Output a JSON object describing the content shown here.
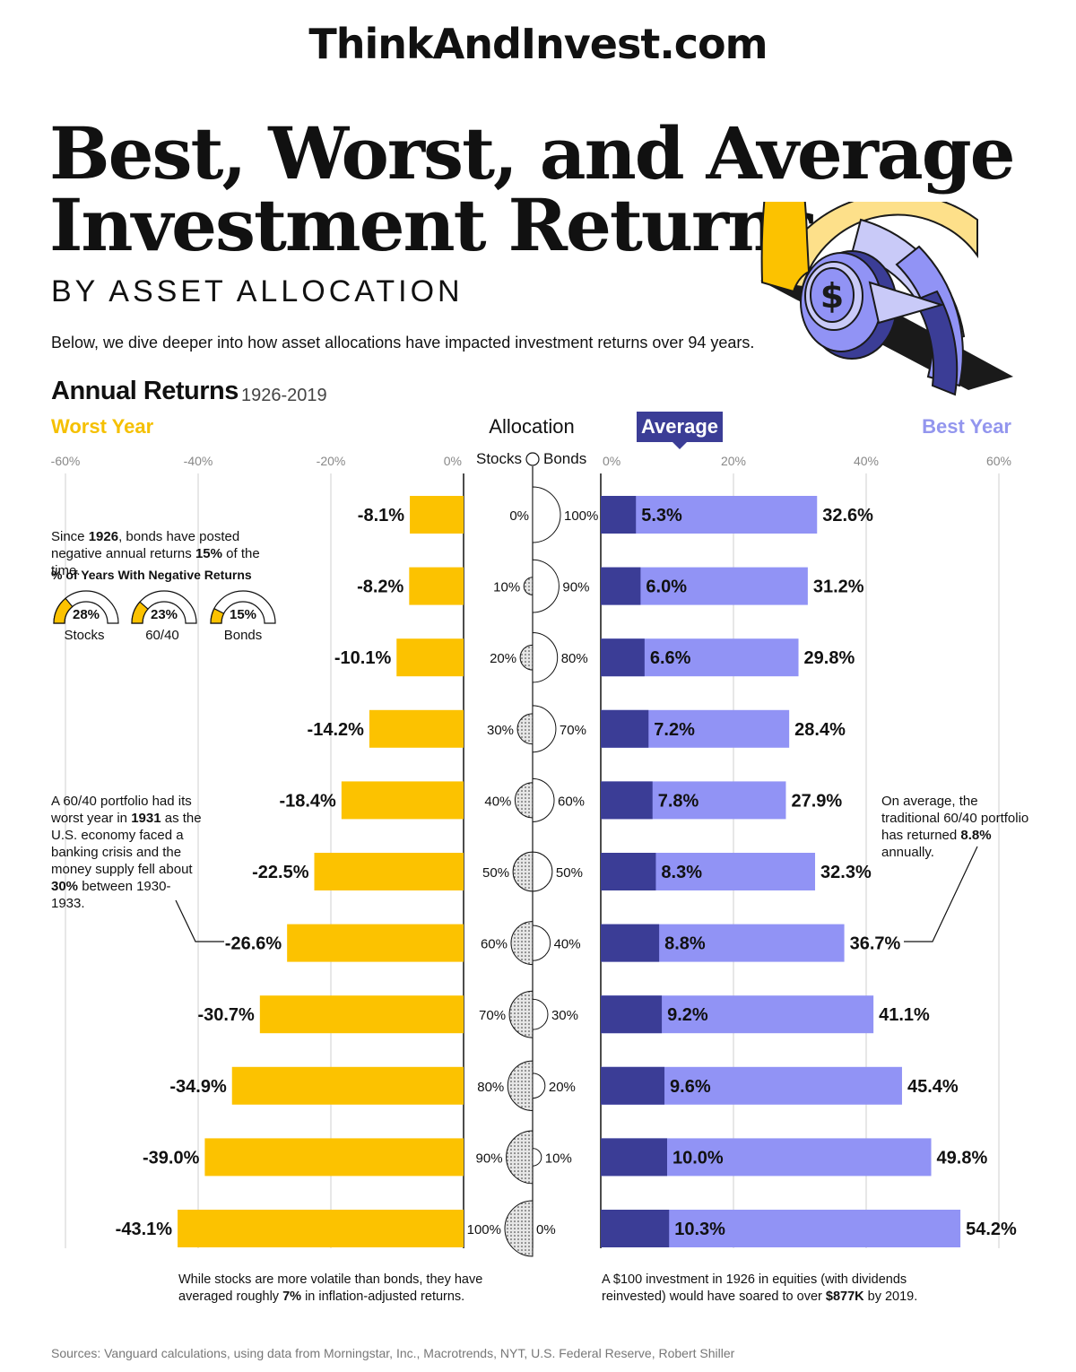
{
  "header": {
    "site": "ThinkAndInvest.com",
    "title_line1": "Best, Worst, and Average",
    "title_line2": "Investment Returns",
    "subtitle": "BY ASSET ALLOCATION",
    "intro": "Below, we dive deeper into how asset allocations have impacted investment returns over 94 years."
  },
  "section": {
    "title": "Annual Returns",
    "period": "1926-2019",
    "worst_label": "Worst Year",
    "allocation_label": "Allocation",
    "average_label": "Average",
    "best_label": "Best Year",
    "stocks_label": "Stocks",
    "bonds_label": "Bonds"
  },
  "chart_data": {
    "type": "bar",
    "categories": [
      "0% / 100%",
      "10% / 90%",
      "20% / 80%",
      "30% / 70%",
      "40% / 60%",
      "50% / 50%",
      "60% / 40%",
      "70% / 30%",
      "80% / 20%",
      "90% / 10%",
      "100% / 0%"
    ],
    "stocks": [
      "0%",
      "10%",
      "20%",
      "30%",
      "40%",
      "50%",
      "60%",
      "70%",
      "80%",
      "90%",
      "100%"
    ],
    "bonds": [
      "100%",
      "90%",
      "80%",
      "70%",
      "60%",
      "50%",
      "40%",
      "30%",
      "20%",
      "10%",
      "0%"
    ],
    "stock_fractions": [
      0,
      0.1,
      0.2,
      0.3,
      0.4,
      0.5,
      0.6,
      0.7,
      0.8,
      0.9,
      1.0
    ],
    "worst": {
      "ticks": [
        "-60%",
        "-40%",
        "-20%",
        "0%"
      ],
      "tick_values": [
        -60,
        -40,
        -20,
        0
      ],
      "xlim": [
        -60,
        0
      ],
      "values": [
        -8.1,
        -8.2,
        -10.1,
        -14.2,
        -18.4,
        -22.5,
        -26.6,
        -30.7,
        -34.9,
        -39.0,
        -43.1
      ],
      "labels": [
        "-8.1%",
        "-8.2%",
        "-10.1%",
        "-14.2%",
        "-18.4%",
        "-22.5%",
        "-26.6%",
        "-30.7%",
        "-34.9%",
        "-39.0%",
        "-43.1%"
      ],
      "color": "#fcc200"
    },
    "average": {
      "values": [
        5.3,
        6.0,
        6.6,
        7.2,
        7.8,
        8.3,
        8.8,
        9.2,
        9.6,
        10.0,
        10.3
      ],
      "labels": [
        "5.3%",
        "6.0%",
        "6.6%",
        "7.2%",
        "7.8%",
        "8.3%",
        "8.8%",
        "9.2%",
        "9.6%",
        "10.0%",
        "10.3%"
      ],
      "color": "#3b3d96"
    },
    "best": {
      "ticks": [
        "0%",
        "20%",
        "40%",
        "60%"
      ],
      "tick_values": [
        0,
        20,
        40,
        60
      ],
      "xlim": [
        0,
        60
      ],
      "values": [
        32.6,
        31.2,
        29.8,
        28.4,
        27.9,
        32.3,
        36.7,
        41.1,
        45.4,
        49.8,
        54.2
      ],
      "labels": [
        "32.6%",
        "31.2%",
        "29.8%",
        "28.4%",
        "27.9%",
        "32.3%",
        "36.7%",
        "41.1%",
        "45.4%",
        "49.8%",
        "54.2%"
      ],
      "color": "#9193f5"
    },
    "grid": true
  },
  "gauges": {
    "intro_year": "1926",
    "intro_pct": "15%",
    "heading": "% of Years With Negative Returns",
    "items": [
      {
        "value": "28%",
        "fraction": 0.28,
        "label": "Stocks"
      },
      {
        "value": "23%",
        "fraction": 0.23,
        "label": "60/40"
      },
      {
        "value": "15%",
        "fraction": 0.15,
        "label": "Bonds"
      }
    ]
  },
  "annotations": {
    "year_1931": "1931",
    "pct_30": "30%",
    "avg_88": "8.8%",
    "pct_7": "7%",
    "usd_877k": "$877K"
  },
  "footer": {
    "sources": "Sources: Vanguard calculations, using data from Morningstar, Inc., Macrotrends, NYT, U.S. Federal Reserve, Robert Shiller"
  },
  "colors": {
    "yellow": "#fcc200",
    "light_yellow": "#fde08a",
    "navy": "#3b3d96",
    "lavender": "#9193f5",
    "pale_lavender": "#c9caf8"
  },
  "icons": [
    "dollar-coin-icon",
    "gauge-dial-icon"
  ]
}
